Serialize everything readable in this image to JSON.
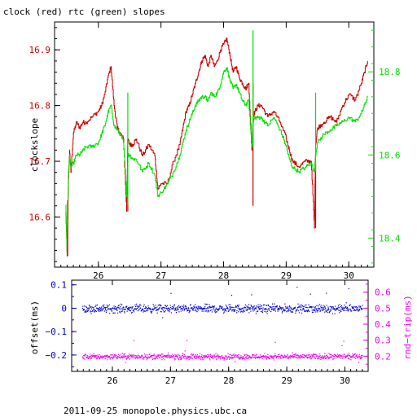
{
  "title": "clock (red) rtc (green) slopes",
  "footer": "2011-09-25  monopole.physics.ubc.ca",
  "colors": {
    "clock": "#cc0000",
    "rtc": "#00e000",
    "offset": "#0000cc",
    "rndtrip": "#ee00ee",
    "axis": "#000000"
  },
  "chart_data": [
    {
      "type": "line",
      "title": "clock (red) rtc (green) slopes",
      "ylabel": "clockslope",
      "xlim": [
        25.3,
        30.4
      ],
      "ylim_left": [
        16.51,
        16.95
      ],
      "ylim_right": [
        18.33,
        18.92
      ],
      "x_ticks": [
        "26",
        "27",
        "28",
        "29",
        "30"
      ],
      "y_ticks_left": [
        "16.6",
        "16.7",
        "16.8",
        "16.9"
      ],
      "y_ticks_right": [
        "18.4",
        "18.6",
        "18.8"
      ],
      "series": [
        {
          "name": "clock",
          "axis": "left",
          "x": [
            25.48,
            25.5,
            25.52,
            25.54,
            25.56,
            25.6,
            25.65,
            25.7,
            25.75,
            25.8,
            25.9,
            26.0,
            26.05,
            26.1,
            26.15,
            26.2,
            26.25,
            26.3,
            26.35,
            26.4,
            26.45,
            26.47,
            26.5,
            26.55,
            26.6,
            26.7,
            26.8,
            26.9,
            26.95,
            27.0,
            27.1,
            27.2,
            27.3,
            27.35,
            27.4,
            27.45,
            27.5,
            27.55,
            27.6,
            27.65,
            27.7,
            27.75,
            27.8,
            27.85,
            27.9,
            27.95,
            28.0,
            28.05,
            28.1,
            28.15,
            28.2,
            28.25,
            28.3,
            28.35,
            28.4,
            28.45,
            28.47,
            28.5,
            28.55,
            28.6,
            28.7,
            28.8,
            28.9,
            29.0,
            29.05,
            29.1,
            29.2,
            29.3,
            29.4,
            29.45,
            29.47,
            29.5,
            29.6,
            29.7,
            29.8,
            29.9,
            30.0,
            30.1,
            30.2,
            30.25,
            30.3
          ],
          "y": [
            16.61,
            16.53,
            16.66,
            16.72,
            16.68,
            16.75,
            16.77,
            16.76,
            16.77,
            16.77,
            16.78,
            16.79,
            16.8,
            16.82,
            16.85,
            16.87,
            16.8,
            16.76,
            16.75,
            16.74,
            16.61,
            16.74,
            16.73,
            16.73,
            16.74,
            16.71,
            16.73,
            16.71,
            16.65,
            16.66,
            16.66,
            16.7,
            16.73,
            16.76,
            16.79,
            16.8,
            16.82,
            16.84,
            16.86,
            16.88,
            16.89,
            16.87,
            16.89,
            16.87,
            16.88,
            16.9,
            16.91,
            16.92,
            16.89,
            16.86,
            16.87,
            16.85,
            16.84,
            16.83,
            16.84,
            16.72,
            16.78,
            16.79,
            16.8,
            16.8,
            16.78,
            16.79,
            16.77,
            16.74,
            16.72,
            16.7,
            16.69,
            16.7,
            16.7,
            16.58,
            16.73,
            16.76,
            16.77,
            16.78,
            16.77,
            16.8,
            16.82,
            16.81,
            16.84,
            16.86,
            16.88
          ]
        },
        {
          "name": "rtc",
          "axis": "right",
          "x": [
            25.48,
            25.5,
            25.52,
            25.54,
            25.56,
            25.6,
            25.65,
            25.7,
            25.75,
            25.8,
            25.9,
            26.0,
            26.05,
            26.1,
            26.15,
            26.2,
            26.25,
            26.3,
            26.35,
            26.4,
            26.45,
            26.47,
            26.5,
            26.55,
            26.6,
            26.7,
            26.8,
            26.9,
            26.95,
            27.0,
            27.1,
            27.2,
            27.3,
            27.35,
            27.4,
            27.45,
            27.5,
            27.55,
            27.6,
            27.65,
            27.7,
            27.75,
            27.8,
            27.85,
            27.9,
            27.95,
            28.0,
            28.05,
            28.1,
            28.15,
            28.2,
            28.25,
            28.3,
            28.35,
            28.4,
            28.45,
            28.47,
            28.5,
            28.55,
            28.6,
            28.7,
            28.8,
            28.9,
            29.0,
            29.05,
            29.1,
            29.2,
            29.3,
            29.4,
            29.45,
            29.47,
            29.5,
            29.6,
            29.7,
            29.8,
            29.9,
            30.0,
            30.1,
            30.2,
            30.25,
            30.3
          ],
          "y": [
            18.48,
            18.36,
            18.55,
            18.6,
            18.57,
            18.58,
            18.6,
            18.6,
            18.61,
            18.62,
            18.62,
            18.63,
            18.65,
            18.67,
            18.7,
            18.72,
            18.67,
            18.66,
            18.65,
            18.63,
            18.5,
            18.6,
            18.6,
            18.59,
            18.59,
            18.56,
            18.58,
            18.55,
            18.5,
            18.51,
            18.53,
            18.56,
            18.6,
            18.63,
            18.66,
            18.68,
            18.7,
            18.72,
            18.73,
            18.74,
            18.74,
            18.73,
            18.75,
            18.74,
            18.75,
            18.77,
            18.8,
            18.81,
            18.78,
            18.76,
            18.77,
            18.75,
            18.73,
            18.72,
            18.73,
            18.62,
            18.68,
            18.69,
            18.69,
            18.69,
            18.67,
            18.69,
            18.66,
            18.62,
            18.59,
            18.57,
            18.56,
            18.57,
            18.58,
            18.56,
            18.6,
            18.63,
            18.65,
            18.66,
            18.67,
            18.68,
            18.69,
            18.68,
            18.7,
            18.72,
            18.74
          ]
        }
      ],
      "spikes": [
        {
          "series": "clock",
          "x": 25.51,
          "y": [
            16.53,
            16.63
          ]
        },
        {
          "series": "clock",
          "x": 26.47,
          "y": [
            16.61,
            16.74
          ]
        },
        {
          "series": "clock",
          "x": 28.47,
          "y": [
            16.62,
            16.84
          ]
        },
        {
          "series": "clock",
          "x": 29.47,
          "y": [
            16.58,
            16.7
          ]
        },
        {
          "series": "rtc",
          "x": 26.47,
          "y": [
            18.48,
            18.75
          ]
        },
        {
          "series": "rtc",
          "x": 28.47,
          "y": [
            18.62,
            18.9
          ]
        },
        {
          "series": "rtc",
          "x": 29.47,
          "y": [
            18.56,
            18.75
          ]
        }
      ]
    },
    {
      "type": "scatter",
      "ylabel_left": "offset(ms)",
      "ylabel_right": "rnd−trip(ms)",
      "xlim": [
        25.3,
        30.4
      ],
      "ylim_left": [
        -0.27,
        0.12
      ],
      "ylim_right": [
        0.105,
        0.675
      ],
      "x_ticks": [
        "26",
        "27",
        "28",
        "29",
        "30"
      ],
      "y_ticks_left": [
        "0.1",
        "0",
        "−0.1",
        "−0.2"
      ],
      "y_ticks_right": [
        "0.6",
        "0.5",
        "0.4",
        "0.3",
        "0.2"
      ],
      "series": [
        {
          "name": "offset",
          "axis": "left",
          "x_range": [
            25.48,
            30.3
          ],
          "center": 0.0,
          "spread": 0.012
        },
        {
          "name": "rnd-trip",
          "axis": "right",
          "x_range": [
            25.48,
            30.3
          ],
          "center": 0.2,
          "spread": 0.012
        }
      ]
    }
  ]
}
